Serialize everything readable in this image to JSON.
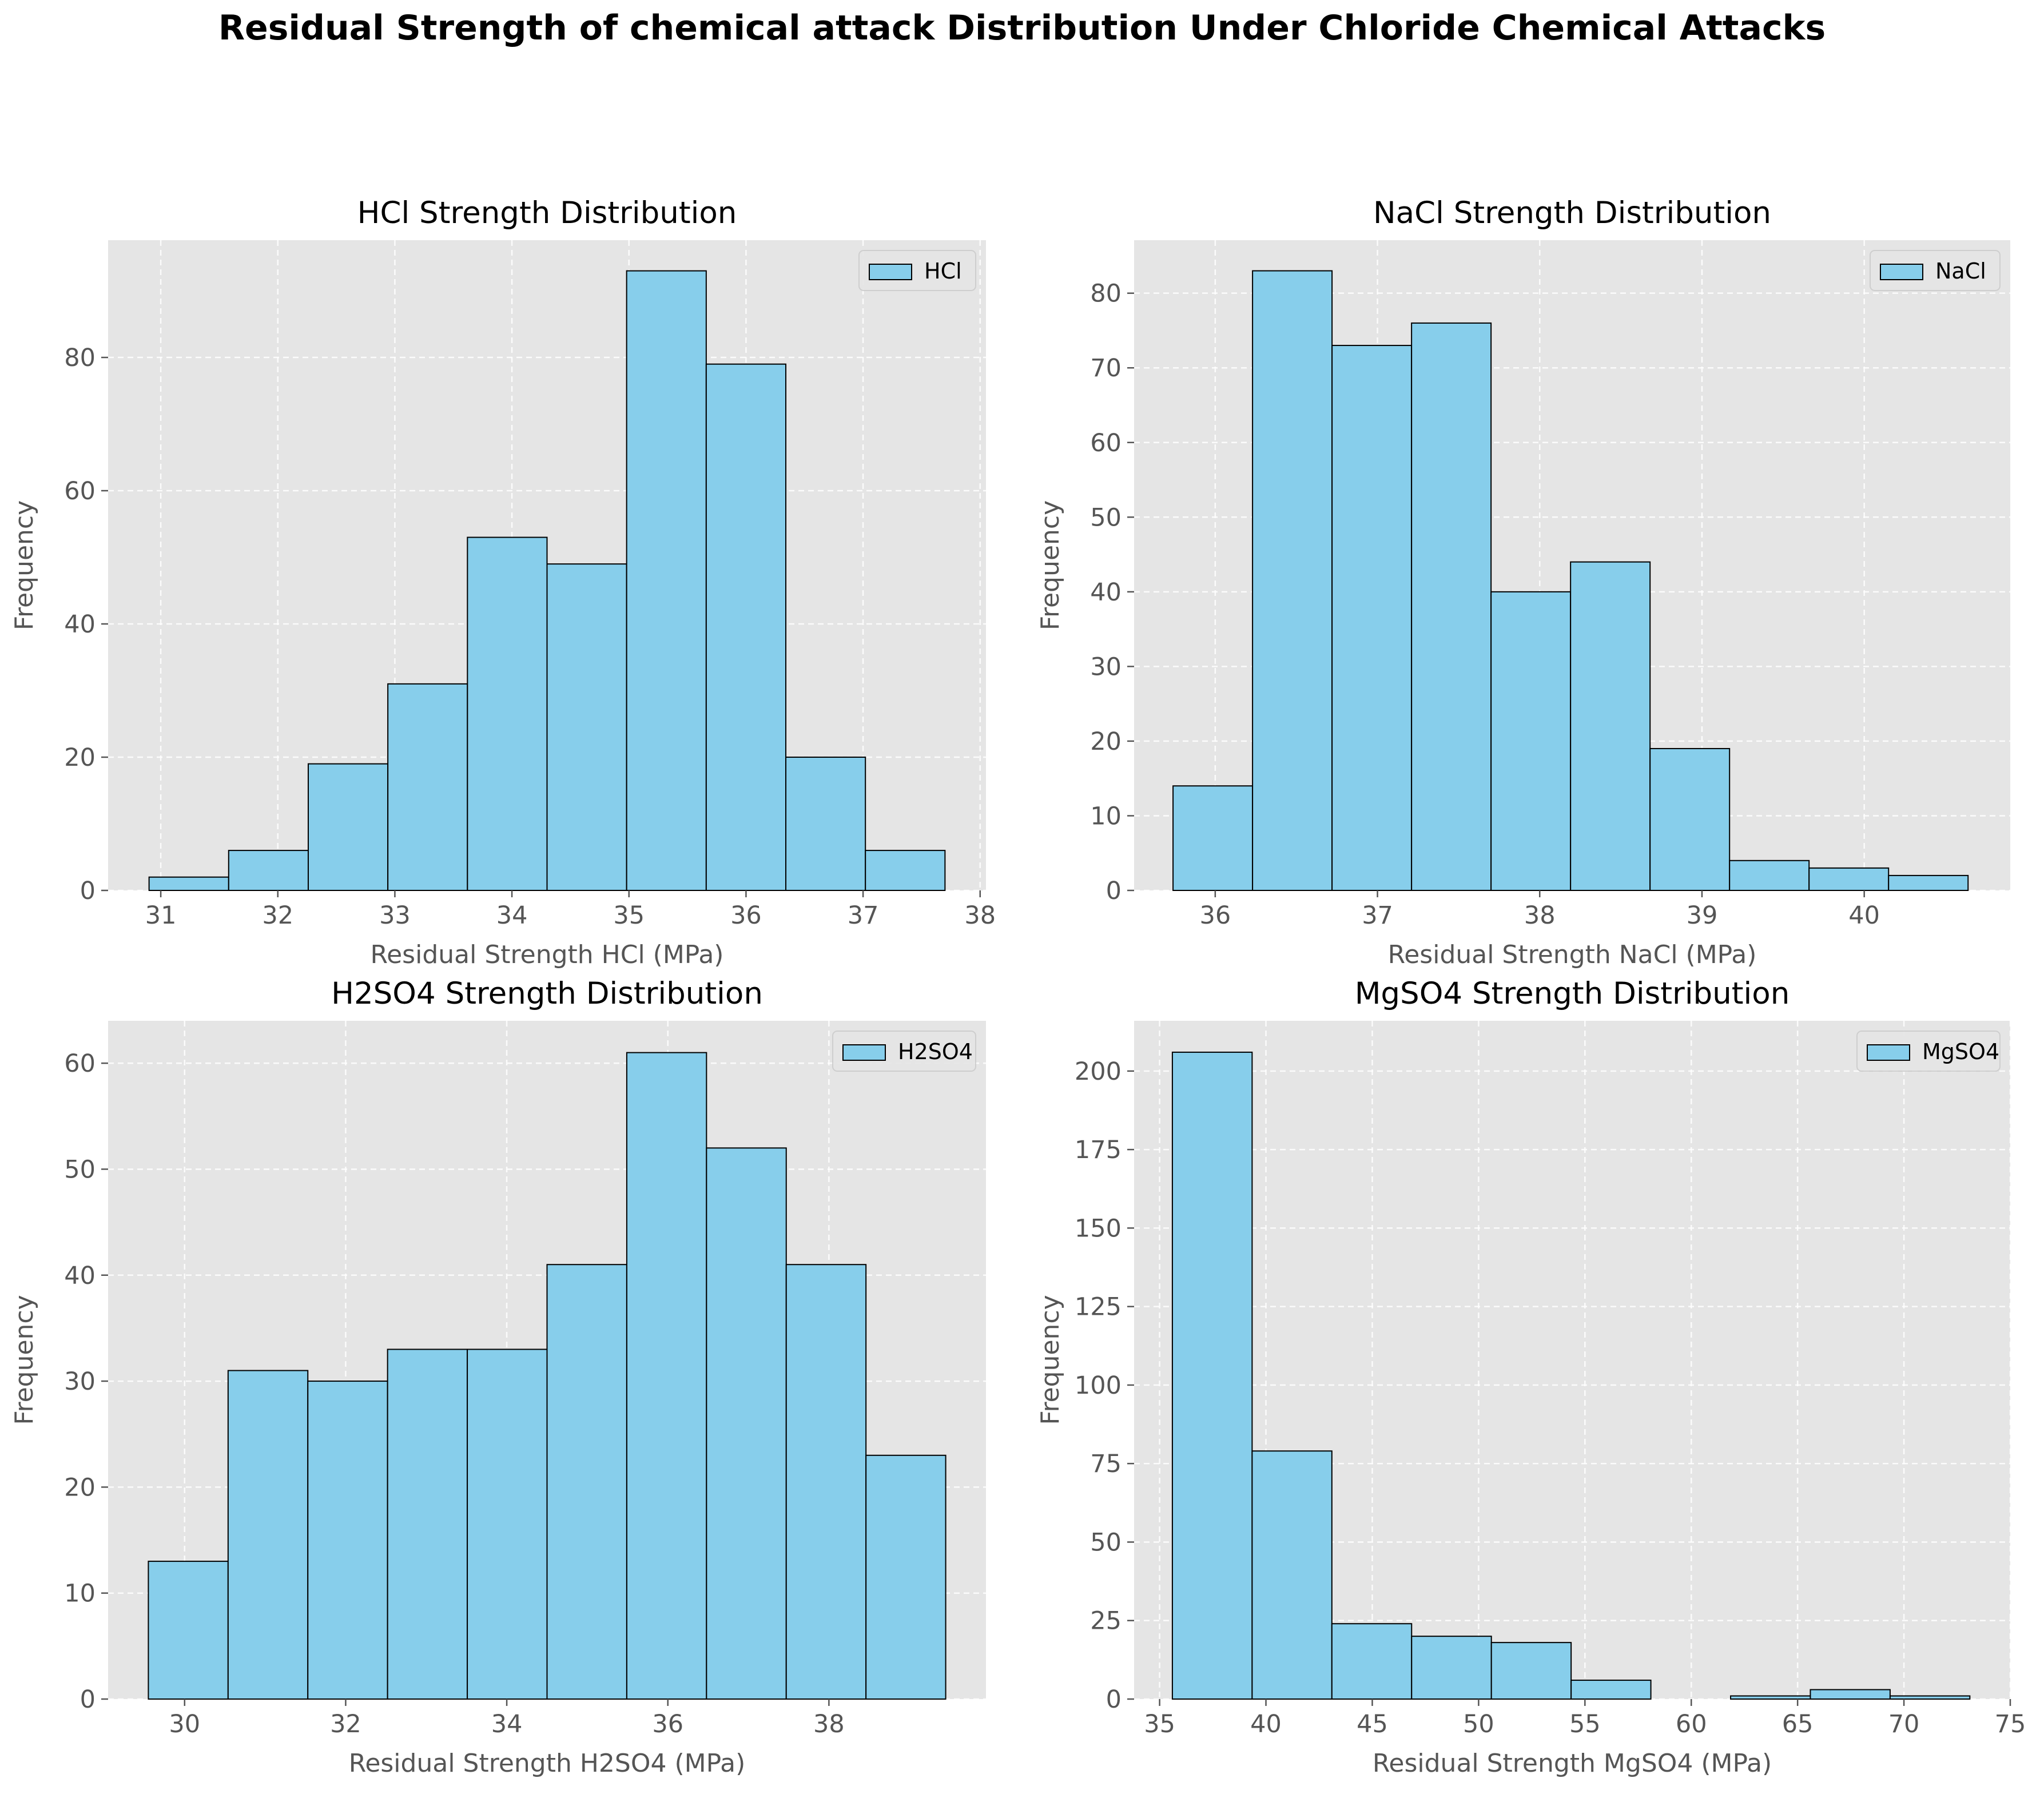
{
  "figure": {
    "title": "Residual Strength of chemical attack Distribution Under Chloride Chemical Attacks"
  },
  "style": {
    "bar_fill": "#87CEEB",
    "bar_edge": "#000000",
    "axes_bg": "#E5E5E5",
    "grid": "#FFFFFF"
  },
  "chart_data": [
    {
      "type": "bar",
      "title": "HCl Strength Distribution",
      "xlabel": "Residual Strength HCl (MPa)",
      "ylabel": "Frequency",
      "legend": "HCl",
      "legend_position": "top-right",
      "grid": true,
      "xlim": [
        30.55,
        38.05
      ],
      "ylim": [
        0,
        97.6
      ],
      "xticks": [
        31,
        32,
        33,
        34,
        35,
        36,
        37,
        38
      ],
      "yticks": [
        0,
        20,
        40,
        60,
        80
      ],
      "bin_edges": [
        30.9,
        31.58,
        32.26,
        32.94,
        33.62,
        34.3,
        34.98,
        35.66,
        36.34,
        37.02,
        37.7
      ],
      "values": [
        2,
        6,
        19,
        31,
        53,
        49,
        93,
        79,
        20,
        6
      ]
    },
    {
      "type": "bar",
      "title": "NaCl Strength Distribution",
      "xlabel": "Residual Strength NaCl (MPa)",
      "ylabel": "Frequency",
      "legend": "NaCl",
      "legend_position": "top-right",
      "grid": true,
      "xlim": [
        35.5,
        40.9
      ],
      "ylim": [
        0,
        87.1
      ],
      "xticks": [
        36,
        37,
        38,
        39,
        40
      ],
      "yticks": [
        0,
        10,
        20,
        30,
        40,
        50,
        60,
        70,
        80
      ],
      "bin_edges": [
        35.74,
        36.23,
        36.72,
        37.21,
        37.7,
        38.19,
        38.68,
        39.17,
        39.66,
        40.15,
        40.64
      ],
      "values": [
        14,
        83,
        73,
        76,
        40,
        44,
        19,
        4,
        3,
        2
      ]
    },
    {
      "type": "bar",
      "title": "H2SO4 Strength Distribution",
      "xlabel": "Residual Strength H2SO4 (MPa)",
      "ylabel": "Frequency",
      "legend": "H2SO4",
      "legend_position": "top-right",
      "grid": true,
      "xlim": [
        29.05,
        39.95
      ],
      "ylim": [
        0,
        64
      ],
      "xticks": [
        30,
        32,
        34,
        36,
        38
      ],
      "yticks": [
        0,
        10,
        20,
        30,
        40,
        50,
        60
      ],
      "bin_edges": [
        29.55,
        30.54,
        31.53,
        32.52,
        33.51,
        34.5,
        35.49,
        36.48,
        37.47,
        38.46,
        39.45
      ],
      "values": [
        13,
        31,
        30,
        33,
        33,
        41,
        61,
        52,
        41,
        23
      ]
    },
    {
      "type": "bar",
      "title": "MgSO4 Strength Distribution",
      "xlabel": "Residual Strength MgSO4 (MPa)",
      "ylabel": "Frequency",
      "legend": "MgSO4",
      "legend_position": "top-right",
      "grid": true,
      "xlim": [
        33.8,
        75.0
      ],
      "ylim": [
        0,
        216
      ],
      "xticks": [
        35,
        40,
        45,
        50,
        55,
        60,
        65,
        70,
        75
      ],
      "yticks": [
        0,
        25,
        50,
        75,
        100,
        125,
        150,
        175,
        200
      ],
      "bin_edges": [
        35.6,
        39.35,
        43.1,
        46.85,
        50.6,
        54.35,
        58.1,
        61.85,
        65.6,
        69.35,
        73.1
      ],
      "values": [
        206,
        79,
        24,
        20,
        18,
        6,
        0,
        1,
        3,
        1
      ]
    }
  ]
}
